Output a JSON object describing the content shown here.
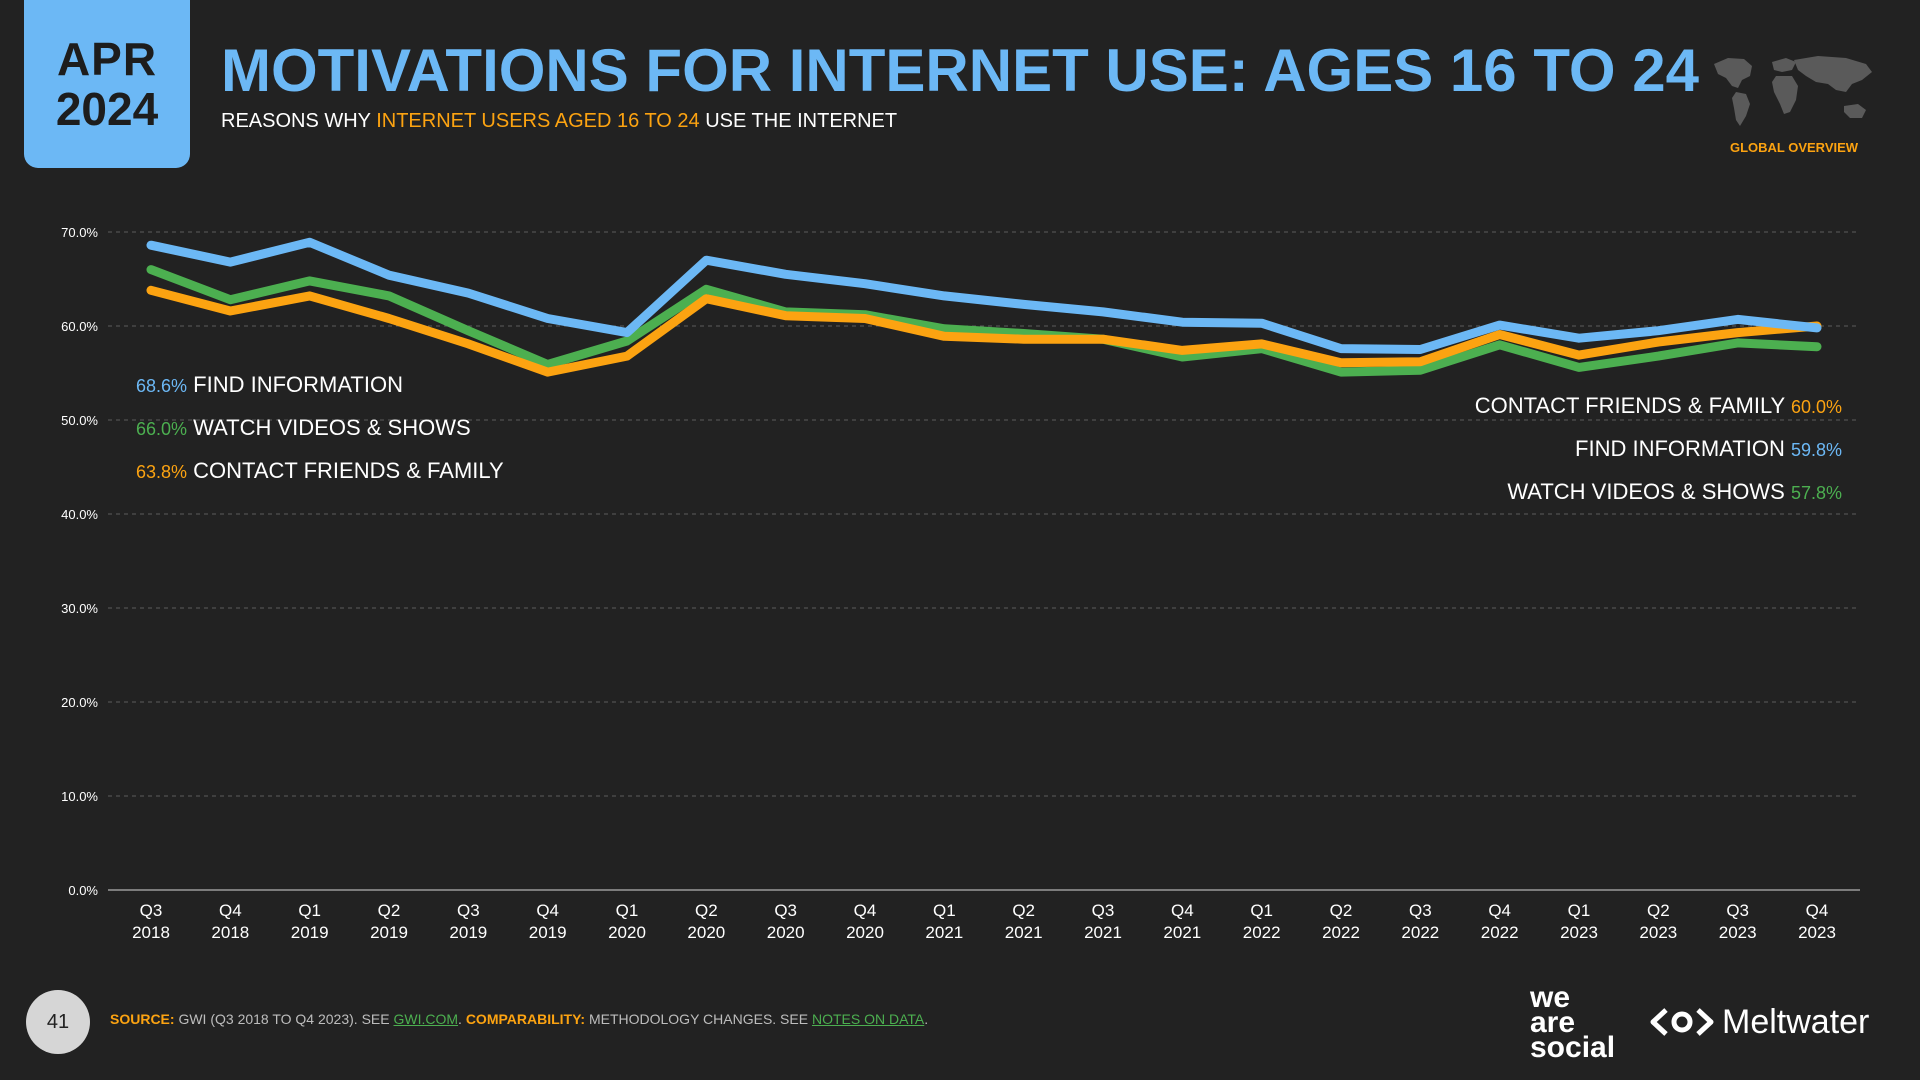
{
  "header": {
    "month": "APR",
    "year": "2024",
    "title": "MOTIVATIONS FOR INTERNET USE: AGES 16 TO 24",
    "subtitle_pre": "REASONS WHY ",
    "subtitle_highlight": "INTERNET USERS AGED 16 TO 24",
    "subtitle_post": " USE THE INTERNET",
    "region": "GLOBAL OVERVIEW"
  },
  "colors": {
    "blue": "#6cb8f5",
    "green": "#4caf50",
    "orange": "#fca311",
    "background": "#222222"
  },
  "chart_data": {
    "type": "line",
    "categories": [
      [
        "Q3",
        "2018"
      ],
      [
        "Q4",
        "2018"
      ],
      [
        "Q1",
        "2019"
      ],
      [
        "Q2",
        "2019"
      ],
      [
        "Q3",
        "2019"
      ],
      [
        "Q4",
        "2019"
      ],
      [
        "Q1",
        "2020"
      ],
      [
        "Q2",
        "2020"
      ],
      [
        "Q3",
        "2020"
      ],
      [
        "Q4",
        "2020"
      ],
      [
        "Q1",
        "2021"
      ],
      [
        "Q2",
        "2021"
      ],
      [
        "Q3",
        "2021"
      ],
      [
        "Q4",
        "2021"
      ],
      [
        "Q1",
        "2022"
      ],
      [
        "Q2",
        "2022"
      ],
      [
        "Q3",
        "2022"
      ],
      [
        "Q4",
        "2022"
      ],
      [
        "Q1",
        "2023"
      ],
      [
        "Q2",
        "2023"
      ],
      [
        "Q3",
        "2023"
      ],
      [
        "Q4",
        "2023"
      ]
    ],
    "ylim": [
      0,
      70
    ],
    "yticks": [
      0,
      10,
      20,
      30,
      40,
      50,
      60,
      70
    ],
    "ytick_labels": [
      "0.0%",
      "10.0%",
      "20.0%",
      "30.0%",
      "40.0%",
      "50.0%",
      "60.0%",
      "70.0%"
    ],
    "grid": true,
    "series": [
      {
        "name": "WATCH VIDEOS & SHOWS",
        "color": "#4caf50",
        "values": [
          66.0,
          62.8,
          64.8,
          63.2,
          59.5,
          55.9,
          58.4,
          63.9,
          61.5,
          61.2,
          59.7,
          59.2,
          58.6,
          56.7,
          57.6,
          55.1,
          55.3,
          58.0,
          55.6,
          56.8,
          58.2,
          57.8
        ]
      },
      {
        "name": "CONTACT FRIENDS & FAMILY",
        "color": "#fca311",
        "values": [
          63.8,
          61.6,
          63.2,
          60.8,
          58.1,
          55.1,
          56.8,
          62.9,
          61.1,
          60.8,
          58.9,
          58.6,
          58.6,
          57.4,
          58.1,
          56.1,
          56.2,
          59.1,
          56.9,
          58.3,
          59.3,
          60.0
        ]
      },
      {
        "name": "FIND INFORMATION",
        "color": "#6cb8f5",
        "values": [
          68.6,
          66.8,
          68.9,
          65.4,
          63.5,
          60.8,
          59.3,
          67.0,
          65.5,
          64.5,
          63.2,
          62.3,
          61.5,
          60.4,
          60.3,
          57.6,
          57.5,
          60.1,
          58.7,
          59.5,
          60.7,
          59.8
        ]
      }
    ],
    "legend_left": [
      {
        "value": "68.6%",
        "label": "FIND INFORMATION",
        "color": "#6cb8f5"
      },
      {
        "value": "66.0%",
        "label": "WATCH VIDEOS & SHOWS",
        "color": "#4caf50"
      },
      {
        "value": "63.8%",
        "label": "CONTACT FRIENDS & FAMILY",
        "color": "#fca311"
      }
    ],
    "legend_right": [
      {
        "value": "60.0%",
        "label": "CONTACT FRIENDS & FAMILY",
        "color": "#fca311"
      },
      {
        "value": "59.8%",
        "label": "FIND INFORMATION",
        "color": "#6cb8f5"
      },
      {
        "value": "57.8%",
        "label": "WATCH VIDEOS & SHOWS",
        "color": "#4caf50"
      }
    ]
  },
  "footer": {
    "page_number": "41",
    "source_label": "SOURCE:",
    "source_text": " GWI (Q3 2018 TO Q4 2023). SEE ",
    "source_link": "GWI.COM",
    "source_sep": ". ",
    "comparability_label": "COMPARABILITY:",
    "comparability_text": " METHODOLOGY CHANGES. SEE ",
    "comparability_link": "NOTES ON DATA",
    "comparability_end": ".",
    "brand_was_line1": "we",
    "brand_was_line2": "are",
    "brand_was_line3": "social",
    "brand_meltwater": "Meltwater"
  }
}
